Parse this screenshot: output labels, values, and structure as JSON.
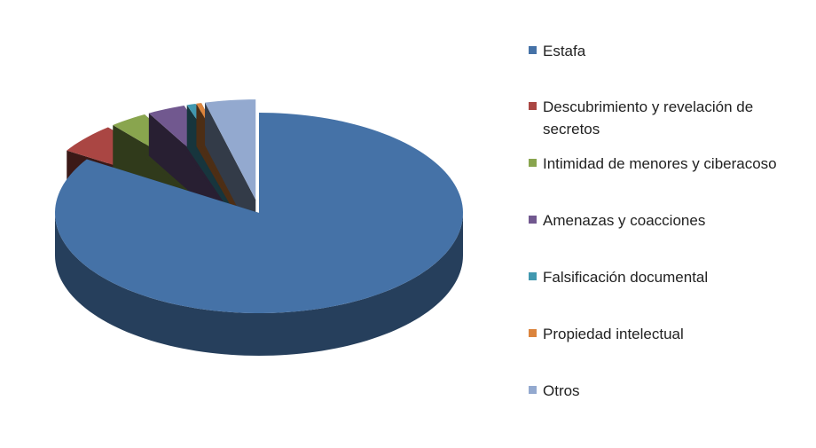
{
  "chart_data": {
    "type": "pie",
    "categories": [
      "Estafa",
      "Descubrimiento y revelación de secretos",
      "Intimidad de menores y ciberacoso",
      "Amenazas y coacciones",
      "Falsificación documental",
      "Propiedad intelectual",
      "Otros"
    ],
    "values": [
      84,
      4.9,
      3,
      3,
      0.7,
      0.4,
      4
    ],
    "colors": [
      "#4572a7",
      "#aa4643",
      "#89a54e",
      "#71588f",
      "#4198af",
      "#db843d",
      "#93a9cf"
    ],
    "legend": "right"
  }
}
